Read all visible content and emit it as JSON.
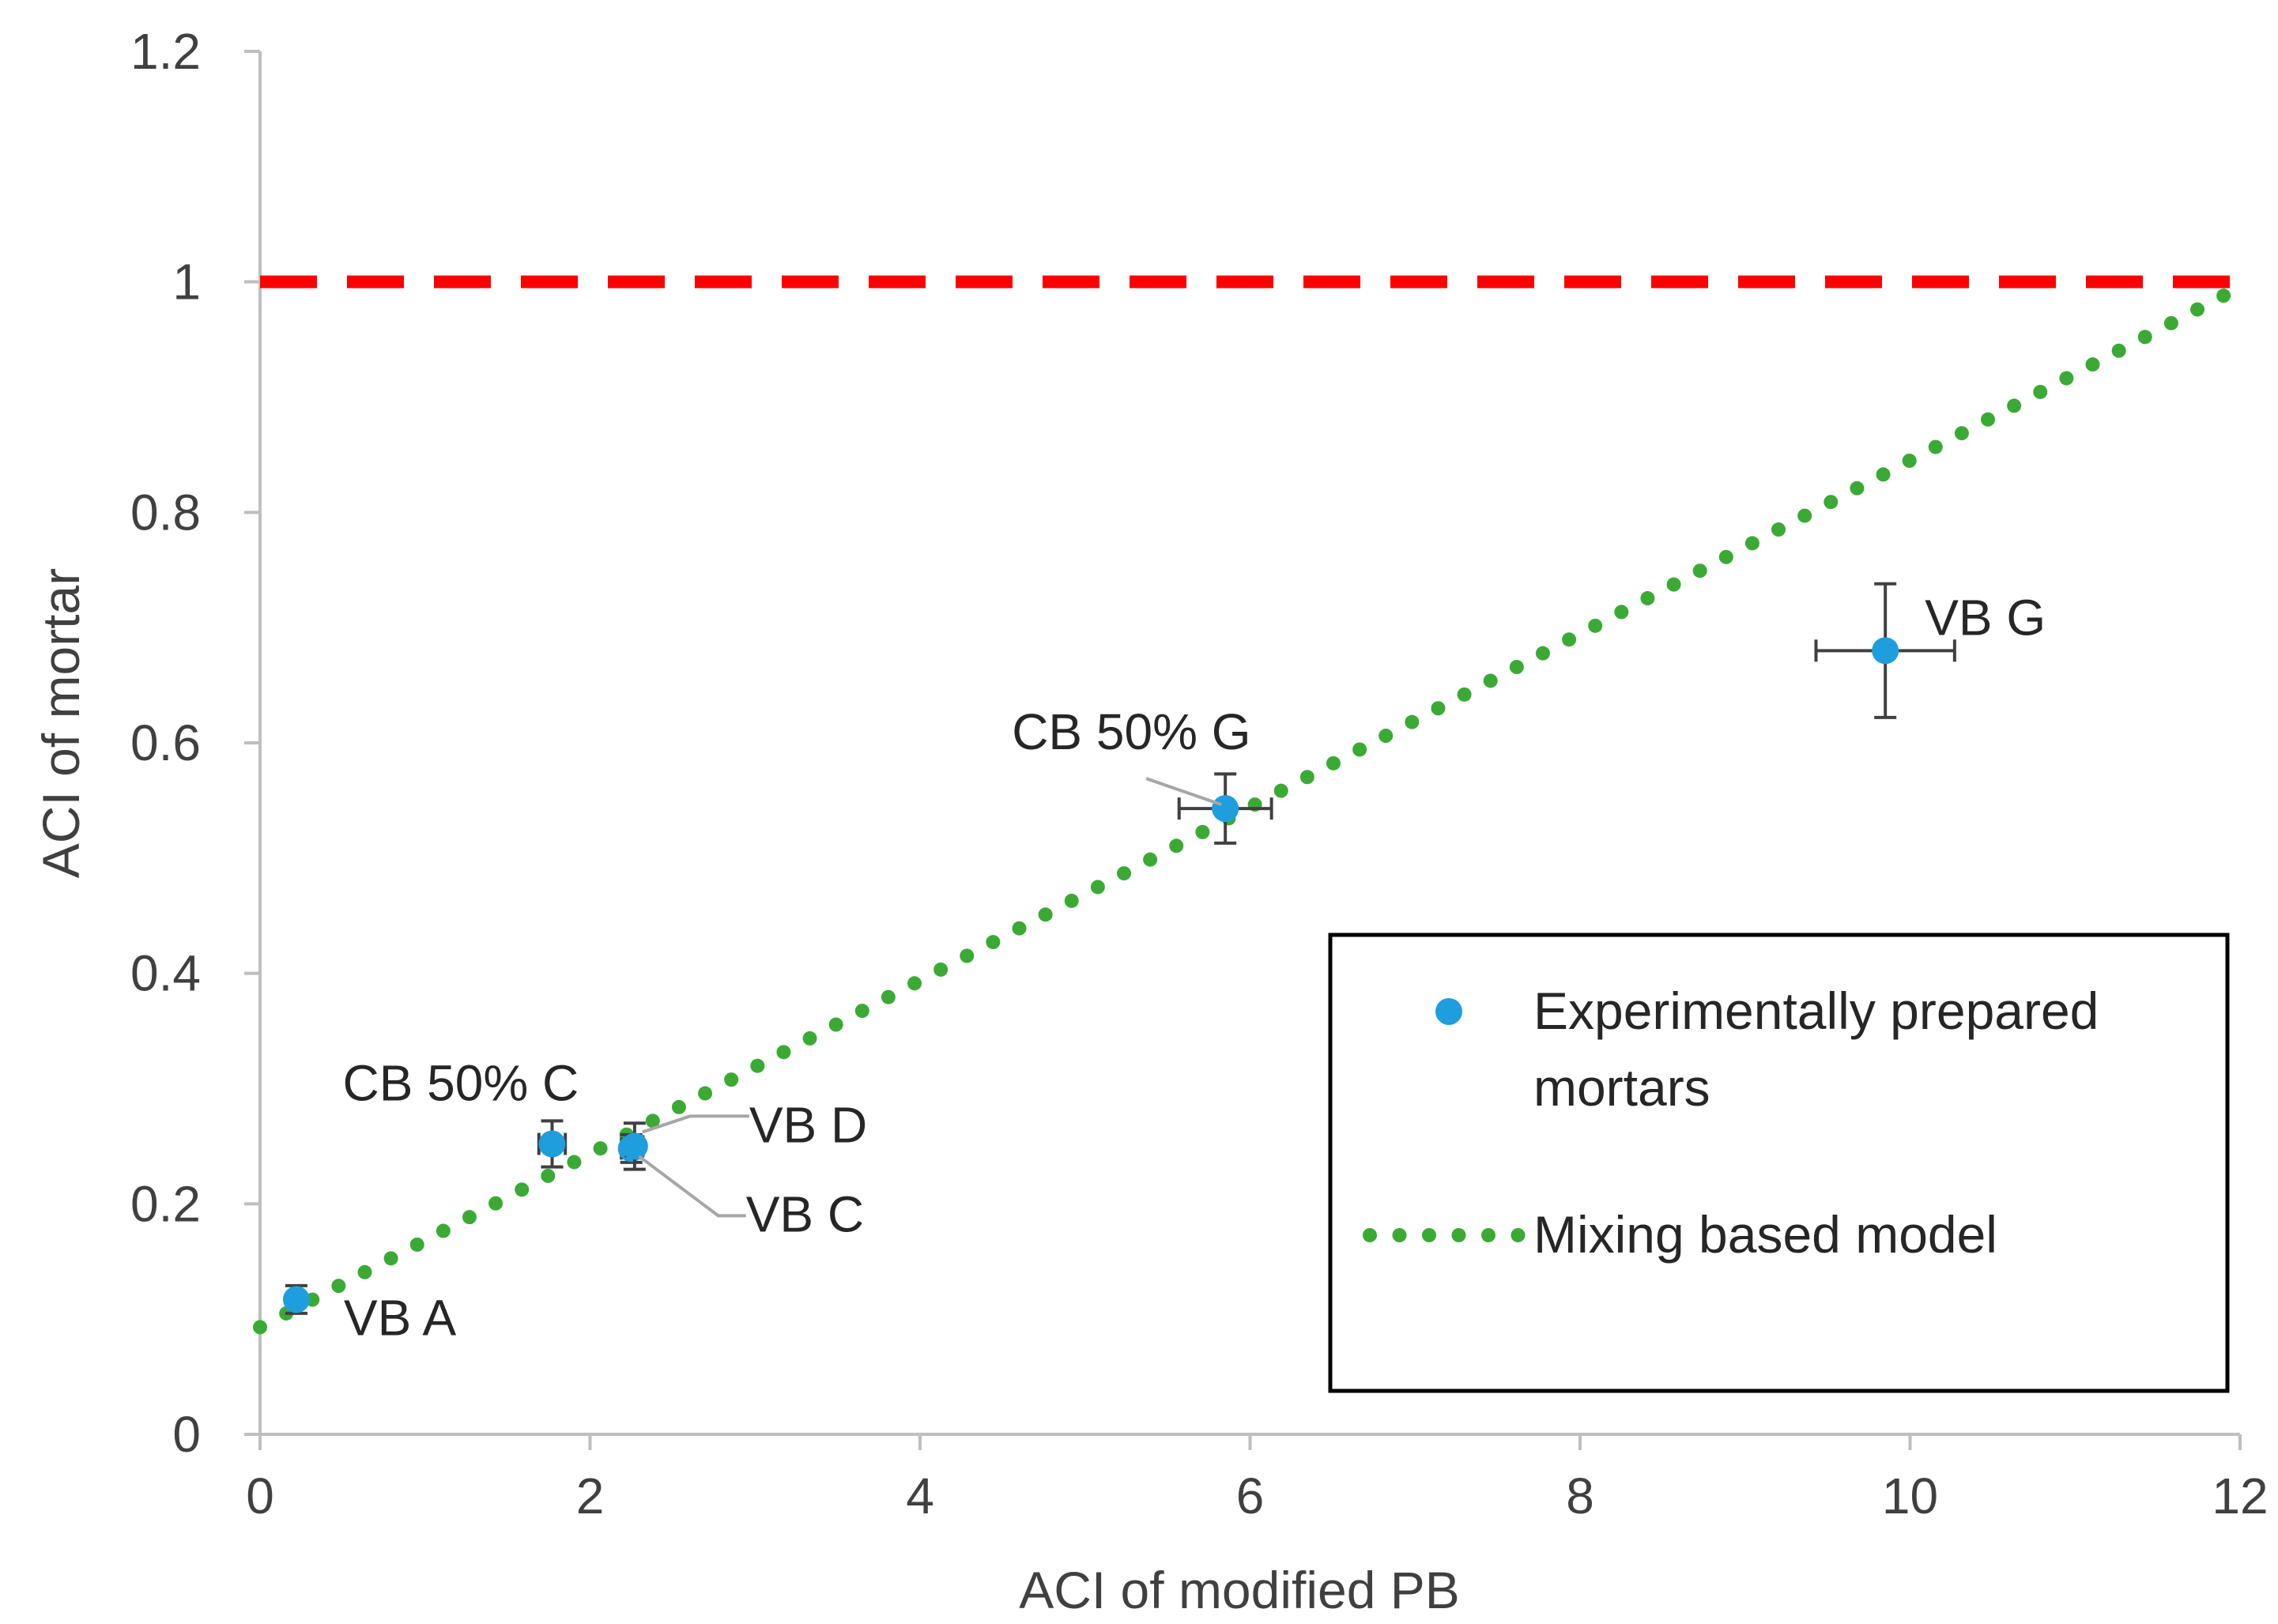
{
  "chart_data": {
    "type": "scatter",
    "xlabel": "ACI of modified PB",
    "ylabel": "ACI of mortar",
    "xlim": [
      0,
      12
    ],
    "ylim": [
      0,
      1.2
    ],
    "xticks": [
      0,
      2,
      4,
      6,
      8,
      10,
      12
    ],
    "yticks": [
      0,
      0.2,
      0.4,
      0.6,
      0.8,
      1,
      1.2
    ],
    "ytick_labels": [
      "0",
      "0.2",
      "0.4",
      "0.6",
      "0.8",
      "1",
      "1.2"
    ],
    "grid": false,
    "legend_position": "bottom-right",
    "series": [
      {
        "name": "Experimentally prepared mortars",
        "kind": "points",
        "color": "#1f9ede",
        "points": [
          {
            "label": "VB A",
            "x": 0.22,
            "y": 0.117,
            "yerr": 0.012,
            "xerr": 0
          },
          {
            "label": "CB 50% C",
            "x": 1.77,
            "y": 0.252,
            "yerr": 0.02,
            "xerr": 0.08
          },
          {
            "label": "VB C",
            "x": 2.25,
            "y": 0.248,
            "yerr": 0.012,
            "xerr": 0.06
          },
          {
            "label": "VB D",
            "x": 2.27,
            "y": 0.25,
            "yerr": 0.02,
            "xerr": 0.05
          },
          {
            "label": "CB 50% G",
            "x": 5.85,
            "y": 0.543,
            "yerr": 0.03,
            "xerr": 0.28
          },
          {
            "label": "VB G",
            "x": 9.85,
            "y": 0.68,
            "yerr": 0.058,
            "xerr": 0.42
          }
        ]
      },
      {
        "name": "Mixing based model",
        "kind": "dotted-line",
        "color": "#3aaa35",
        "x": [
          0,
          11.9
        ],
        "y": [
          0.093,
          0.988
        ]
      },
      {
        "name": "",
        "kind": "dashed-line",
        "color": "#ff0000",
        "x": [
          0,
          12
        ],
        "y": [
          1,
          1
        ]
      }
    ]
  }
}
